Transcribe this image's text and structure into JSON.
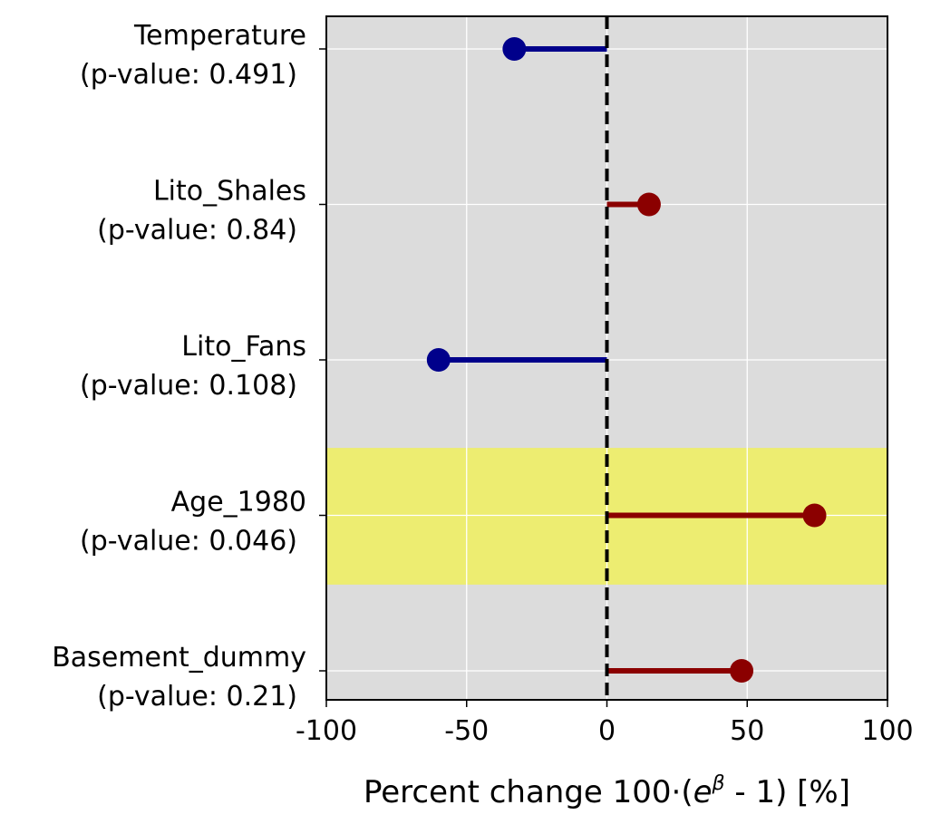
{
  "chart_data": {
    "type": "lollipop",
    "orientation": "horizontal",
    "categories": [
      {
        "name": "Temperature",
        "pvalue_label": "(p-value: 0.491)",
        "value": -33,
        "highlight": false
      },
      {
        "name": "Lito_Shales",
        "pvalue_label": "(p-value: 0.84)",
        "value": 15,
        "highlight": false
      },
      {
        "name": "Lito_Fans",
        "pvalue_label": "(p-value: 0.108)",
        "value": -60,
        "highlight": false
      },
      {
        "name": "Age_1980",
        "pvalue_label": "(p-value: 0.046)",
        "value": 74,
        "highlight": true
      },
      {
        "name": "Basement_dummy",
        "pvalue_label": "(p-value: 0.21)",
        "value": 48,
        "highlight": false
      }
    ],
    "xlabel_prefix": "Percent change 100·(",
    "xlabel_base": "e",
    "xlabel_sup": "β",
    "xlabel_suffix": " - 1) [%]",
    "xlim": [
      -100,
      100
    ],
    "xticks": [
      -100,
      -50,
      0,
      50,
      100
    ],
    "xtick_labels": [
      "-100",
      "-50",
      "0",
      "50",
      "100"
    ],
    "reference_line_x": 0,
    "grid": true,
    "colors": {
      "positive": "#8b0000",
      "negative": "#00008b",
      "background": "#dcdcdc",
      "highlight": "#eded71",
      "grid": "#ffffff",
      "reference": "#000000"
    }
  }
}
